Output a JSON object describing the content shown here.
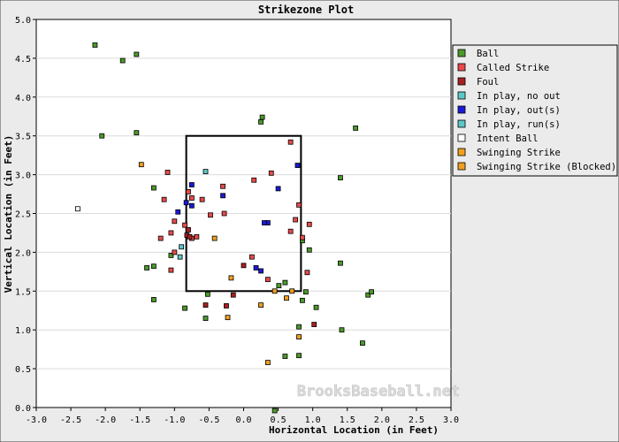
{
  "chart_data": {
    "type": "scatter",
    "title": "Strikezone Plot",
    "xlabel": "Horizontal Location (in Feet)",
    "ylabel": "Vertical Location (in Feet)",
    "xlim": [
      -3.0,
      3.0
    ],
    "ylim": [
      0.0,
      5.0
    ],
    "xticks": [
      "-3.0",
      "-2.5",
      "-2.0",
      "-1.5",
      "-1.0",
      "-0.5",
      "0.0",
      "0.5",
      "1.0",
      "1.5",
      "2.0",
      "2.5",
      "3.0"
    ],
    "yticks": [
      "0.0",
      "0.5",
      "1.0",
      "1.5",
      "2.0",
      "2.5",
      "3.0",
      "3.5",
      "4.0",
      "4.5",
      "5.0"
    ],
    "grid": "horizontal",
    "legend_position": "right",
    "watermark": "BrooksBaseball.net",
    "strike_zone": {
      "x": [
        -0.83,
        0.83
      ],
      "y": [
        1.5,
        3.5
      ]
    },
    "series": [
      {
        "name": "Ball",
        "color": "#4a9a2a",
        "points": [
          [
            -2.15,
            4.67
          ],
          [
            -1.75,
            4.47
          ],
          [
            -1.55,
            4.55
          ],
          [
            -2.05,
            3.5
          ],
          [
            -1.55,
            3.54
          ],
          [
            0.27,
            3.74
          ],
          [
            0.25,
            3.68
          ],
          [
            1.62,
            3.6
          ],
          [
            1.4,
            2.96
          ],
          [
            -1.3,
            2.83
          ],
          [
            -1.05,
            1.96
          ],
          [
            -1.4,
            1.8
          ],
          [
            -1.3,
            1.82
          ],
          [
            1.4,
            1.86
          ],
          [
            -1.3,
            1.39
          ],
          [
            -0.85,
            1.28
          ],
          [
            -0.55,
            1.15
          ],
          [
            -0.52,
            1.46
          ],
          [
            0.9,
            1.49
          ],
          [
            0.85,
            1.38
          ],
          [
            1.05,
            1.29
          ],
          [
            1.8,
            1.45
          ],
          [
            1.85,
            1.49
          ],
          [
            1.42,
            1.0
          ],
          [
            1.72,
            0.83
          ],
          [
            0.8,
            1.04
          ],
          [
            0.6,
            0.66
          ],
          [
            0.8,
            0.67
          ],
          [
            0.95,
            2.03
          ],
          [
            0.85,
            2.15
          ],
          [
            0.6,
            1.61
          ],
          [
            0.51,
            1.57
          ],
          [
            0.45,
            -0.04
          ]
        ]
      },
      {
        "name": "Called Strike",
        "color": "#e84a4a",
        "points": [
          [
            -1.1,
            3.03
          ],
          [
            -1.15,
            2.68
          ],
          [
            -1.2,
            2.18
          ],
          [
            -1.0,
            2.4
          ],
          [
            -0.8,
            2.78
          ],
          [
            -0.75,
            2.7
          ],
          [
            -0.75,
            2.18
          ],
          [
            -0.68,
            2.2
          ],
          [
            -0.6,
            2.68
          ],
          [
            -0.48,
            2.48
          ],
          [
            -0.3,
            2.85
          ],
          [
            -0.28,
            2.5
          ],
          [
            0.15,
            2.93
          ],
          [
            0.4,
            3.02
          ],
          [
            0.68,
            3.42
          ],
          [
            0.75,
            2.42
          ],
          [
            0.8,
            2.61
          ],
          [
            0.68,
            2.27
          ],
          [
            0.95,
            2.36
          ],
          [
            0.85,
            2.19
          ],
          [
            -0.85,
            2.35
          ],
          [
            -1.05,
            2.25
          ],
          [
            -1.0,
            2.0
          ],
          [
            -1.05,
            1.77
          ],
          [
            0.12,
            1.94
          ],
          [
            0.35,
            1.65
          ],
          [
            0.92,
            1.74
          ]
        ]
      },
      {
        "name": "Foul",
        "color": "#a82020",
        "points": [
          [
            -0.8,
            2.29
          ],
          [
            -0.82,
            2.22
          ],
          [
            -0.78,
            2.2
          ],
          [
            -0.55,
            1.32
          ],
          [
            -0.25,
            1.31
          ],
          [
            -0.15,
            1.45
          ],
          [
            0.0,
            1.83
          ],
          [
            1.02,
            1.07
          ]
        ]
      },
      {
        "name": "In play, no out",
        "color": "#5cc8c8",
        "points": [
          [
            -0.55,
            3.04
          ],
          [
            -0.9,
            2.07
          ],
          [
            -0.92,
            1.94
          ]
        ]
      },
      {
        "name": "In play, out(s)",
        "color": "#1a1ad6",
        "points": [
          [
            -0.75,
            2.87
          ],
          [
            -0.75,
            2.6
          ],
          [
            -0.95,
            2.52
          ],
          [
            -0.83,
            2.64
          ],
          [
            -0.3,
            2.73
          ],
          [
            0.35,
            2.38
          ],
          [
            0.3,
            2.38
          ],
          [
            0.5,
            2.82
          ],
          [
            0.78,
            3.12
          ],
          [
            0.18,
            1.8
          ],
          [
            0.25,
            1.76
          ]
        ]
      },
      {
        "name": "In play, run(s)",
        "color": "#5cc8c8",
        "points": []
      },
      {
        "name": "Intent Ball",
        "color": "#ffffff",
        "points": [
          [
            -2.4,
            2.56
          ]
        ]
      },
      {
        "name": "Swinging Strike",
        "color": "#f0a020",
        "points": [
          [
            -1.48,
            3.13
          ],
          [
            -0.42,
            2.18
          ],
          [
            0.45,
            1.5
          ],
          [
            0.7,
            1.5
          ],
          [
            0.25,
            1.32
          ],
          [
            -0.23,
            1.16
          ],
          [
            -0.18,
            1.67
          ],
          [
            0.62,
            1.41
          ],
          [
            0.8,
            0.91
          ],
          [
            0.35,
            0.58
          ]
        ]
      },
      {
        "name": "Swinging Strike (Blocked)",
        "color": "#f0a020",
        "points": []
      }
    ]
  }
}
